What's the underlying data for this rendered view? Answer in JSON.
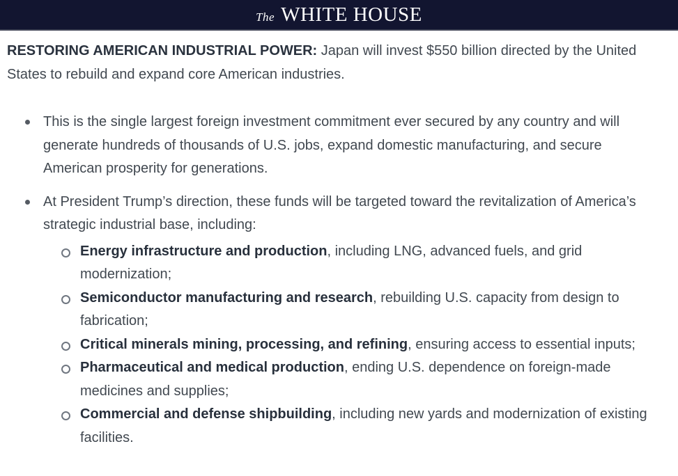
{
  "header": {
    "brand_the": "The",
    "brand_name": "WHITE HOUSE"
  },
  "lead": {
    "bold": "RESTORING AMERICAN INDUSTRIAL POWER:",
    "rest": " Japan will invest $550 billion directed by the United States to rebuild and expand core American industries."
  },
  "bullets": [
    {
      "text": "This is the single largest foreign investment commitment ever secured by any country and will generate hundreds of thousands of U.S. jobs, expand domestic manufacturing, and secure American prosperity for generations."
    },
    {
      "text": "At President Trump’s direction, these funds will be targeted toward the revitalization of America’s strategic industrial base, including:"
    }
  ],
  "sub_bullets": [
    {
      "bold": "Energy infrastructure and production",
      "rest": ", including LNG, advanced fuels, and grid modernization;"
    },
    {
      "bold": "Semiconductor manufacturing and research",
      "rest": ", rebuilding U.S. capacity from design to fabrication;"
    },
    {
      "bold": "Critical minerals mining, processing, and refining",
      "rest": ", ensuring access to essential inputs;"
    },
    {
      "bold": "Pharmaceutical and medical production",
      "rest": ", ending U.S. dependence on foreign-made medicines and supplies;"
    },
    {
      "bold": "Commercial and defense shipbuilding",
      "rest": ", including new yards and modernization of existing facilities."
    }
  ],
  "colors": {
    "header_bg": "#121530",
    "header_border": "#3d4153",
    "heading_bold": "#2a323e",
    "body_text": "#414850",
    "bullet_dot": "#555b63",
    "sub_ring": "#6f7680"
  }
}
